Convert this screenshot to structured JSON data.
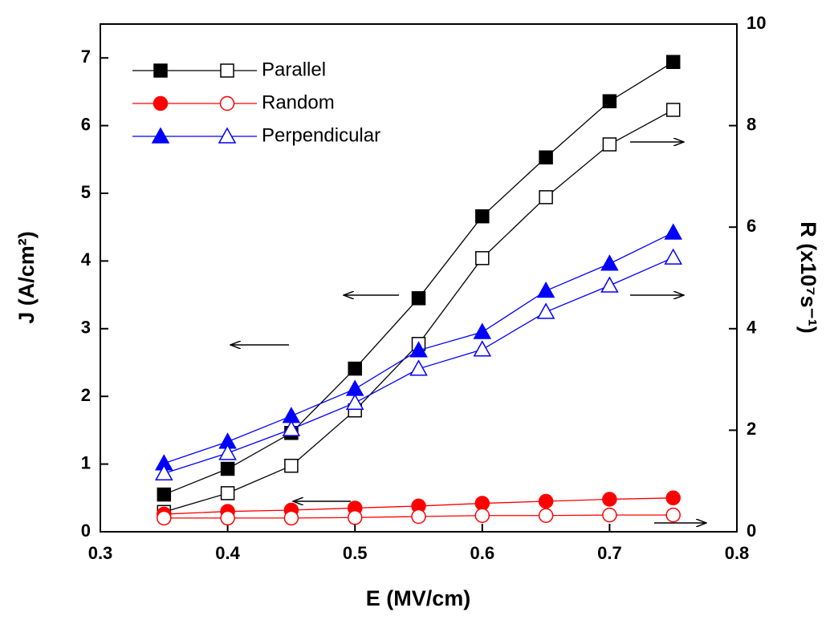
{
  "chart_data": {
    "type": "line",
    "x_label": "E (MV/cm)",
    "y_label": "J (A/cm²)",
    "y2_label": "R (x10⁷s⁻¹)",
    "x": [
      0.35,
      0.4,
      0.45,
      0.5,
      0.55,
      0.6,
      0.65,
      0.7,
      0.75
    ],
    "xlim": [
      0.3,
      0.8
    ],
    "xticks": [
      0.3,
      0.4,
      0.5,
      0.6,
      0.7,
      0.8
    ],
    "ylim": [
      0,
      7.5
    ],
    "yticks": [
      0,
      1,
      2,
      3,
      4,
      5,
      6,
      7
    ],
    "y2lim": [
      0,
      10
    ],
    "y2ticks": [
      0,
      2,
      4,
      6,
      8,
      10
    ],
    "series": [
      {
        "name": "Parallel",
        "color": "#000000",
        "marker": "square",
        "values": [
          0.55,
          0.93,
          1.46,
          2.41,
          3.45,
          4.66,
          5.53,
          6.36,
          6.94
        ],
        "y2_values": [
          0.39,
          0.76,
          1.3,
          2.39,
          3.7,
          5.39,
          6.59,
          7.63,
          8.31
        ]
      },
      {
        "name": "Random",
        "color": "#ff0000",
        "marker": "circle",
        "values": [
          0.26,
          0.3,
          0.32,
          0.35,
          0.38,
          0.42,
          0.45,
          0.48,
          0.5
        ],
        "y2_values": [
          0.27,
          0.27,
          0.27,
          0.28,
          0.3,
          0.32,
          0.32,
          0.33,
          0.33
        ]
      },
      {
        "name": "Perpendicular",
        "color": "#0000ff",
        "marker": "triangle",
        "values": [
          1.01,
          1.33,
          1.71,
          2.11,
          2.68,
          2.95,
          3.56,
          3.96,
          4.42
        ],
        "y2_values": [
          1.15,
          1.55,
          2.02,
          2.54,
          3.21,
          3.59,
          4.33,
          4.85,
          5.4
        ]
      }
    ]
  }
}
